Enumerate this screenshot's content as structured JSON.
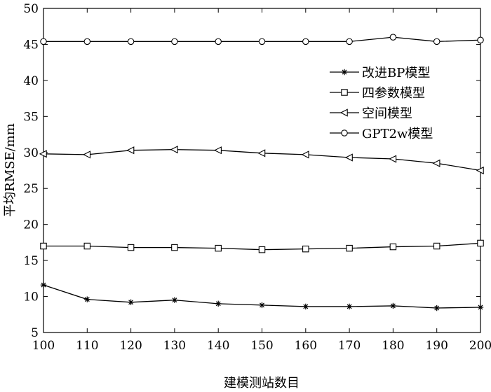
{
  "chart_data": {
    "type": "line",
    "title": "",
    "xlabel": "建模测站数目",
    "ylabel": "平均RMSE/mm",
    "x": [
      100,
      110,
      120,
      130,
      140,
      150,
      160,
      170,
      180,
      190,
      200
    ],
    "xlim": [
      100,
      200
    ],
    "ylim": [
      5,
      50
    ],
    "x_ticks": [
      "100",
      "110",
      "120",
      "130",
      "140",
      "150",
      "160",
      "170",
      "180",
      "190",
      "200"
    ],
    "y_ticks": [
      "5",
      "10",
      "15",
      "20",
      "25",
      "30",
      "35",
      "40",
      "45",
      "50"
    ],
    "grid": false,
    "legend_position": "right-upper",
    "series": [
      {
        "name": "改进BP模型",
        "marker": "asterisk",
        "color": "#000000",
        "values": [
          11.6,
          9.6,
          9.2,
          9.5,
          9.0,
          8.8,
          8.6,
          8.6,
          8.7,
          8.4,
          8.5
        ]
      },
      {
        "name": "四参数模型",
        "marker": "square",
        "color": "#000000",
        "values": [
          17.0,
          17.0,
          16.8,
          16.8,
          16.7,
          16.5,
          16.6,
          16.7,
          16.9,
          17.0,
          17.4
        ]
      },
      {
        "name": "空间模型",
        "marker": "triangle-left",
        "color": "#000000",
        "values": [
          29.8,
          29.7,
          30.3,
          30.4,
          30.3,
          29.9,
          29.7,
          29.3,
          29.1,
          28.5,
          27.5
        ]
      },
      {
        "name": "GPT2w模型",
        "marker": "circle",
        "color": "#000000",
        "values": [
          45.4,
          45.4,
          45.4,
          45.4,
          45.4,
          45.4,
          45.4,
          45.4,
          46.0,
          45.4,
          45.6
        ]
      }
    ]
  }
}
